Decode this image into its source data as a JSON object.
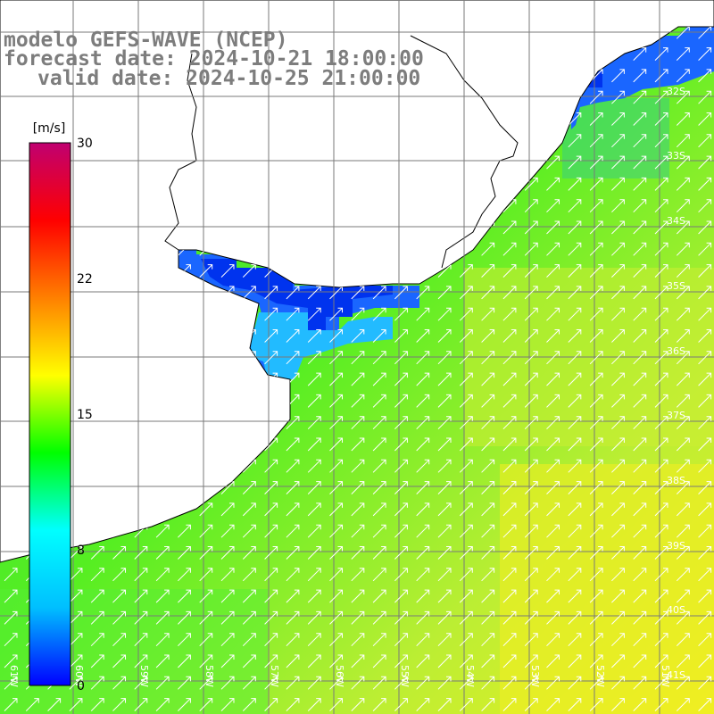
{
  "titles": {
    "line1": "modelo GEFS-WAVE (NCEP)",
    "line2": "forecast date: 2024-10-21 18:00:00",
    "line3": "valid date: 2024-10-25 21:00:00"
  },
  "colorbar": {
    "unit": "[m/s]",
    "ticks": [
      "30",
      "22",
      "15",
      "8",
      "0"
    ],
    "stops": [
      "#0000ff",
      "#00bfff",
      "#00ffff",
      "#00ff00",
      "#ffff00",
      "#ff8000",
      "#ff0000",
      "#c00070"
    ]
  },
  "lat_labels": [
    "32S",
    "33S",
    "34S",
    "35S",
    "36S",
    "37S",
    "38S",
    "39S",
    "40S",
    "41S"
  ],
  "lon_labels": [
    "61W",
    "60W",
    "59W",
    "58W",
    "57W",
    "56W",
    "55W",
    "54W",
    "53W",
    "52W",
    "51W"
  ],
  "field": {
    "variable": "wind speed",
    "unit": "m/s",
    "wind_direction": "from SW (arrows pointing NE)"
  }
}
